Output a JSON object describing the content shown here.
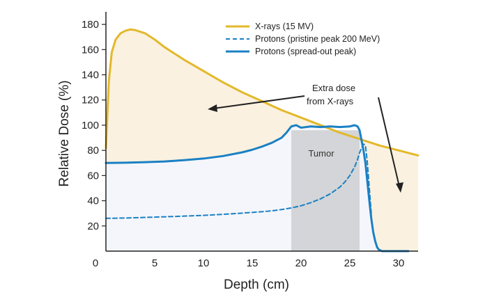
{
  "chart_data": {
    "type": "line",
    "xlabel": "Depth (cm)",
    "ylabel": "Relative Dose (%)",
    "xlim": [
      0,
      32
    ],
    "ylim": [
      0,
      190
    ],
    "xticks": [
      0,
      5,
      10,
      15,
      20,
      25,
      30
    ],
    "yticks": [
      20,
      40,
      60,
      80,
      100,
      120,
      140,
      160,
      180
    ],
    "grid": false,
    "legend_position": "top-right",
    "series": [
      {
        "name": "X-rays (15 MV)",
        "style": "solid",
        "color": "#e3b82a",
        "x": [
          0,
          0.3,
          0.6,
          1.0,
          1.5,
          2.0,
          2.5,
          3.0,
          4.0,
          5.0,
          6.0,
          8.0,
          10.0,
          12.0,
          14.0,
          16.0,
          18.0,
          20.0,
          22.0,
          24.0,
          26.0,
          28.0,
          30.0,
          32.0
        ],
        "y": [
          82,
          135,
          158,
          168,
          173,
          175,
          176,
          175.5,
          173,
          168,
          162,
          152,
          143,
          134,
          126,
          119,
          112,
          106,
          100,
          94,
          89,
          84,
          80,
          76
        ]
      },
      {
        "name": "Protons (pristine peak 200 MeV)",
        "style": "dashed",
        "color": "#1a80c4",
        "x": [
          0,
          2,
          5,
          8,
          10,
          12,
          14,
          16,
          17,
          18,
          19,
          20,
          21,
          22,
          23,
          24,
          24.5,
          25,
          25.5,
          25.8,
          26.0,
          26.2,
          26.4,
          26.6,
          26.8,
          27.0,
          27.2
        ],
        "y": [
          26,
          26.3,
          27,
          27.8,
          28.4,
          29.2,
          30.2,
          31.3,
          32,
          33,
          34.3,
          36,
          38.5,
          41.5,
          45.5,
          51,
          55,
          60,
          67,
          73,
          78,
          82,
          85,
          84,
          70,
          50,
          30
        ]
      },
      {
        "name": "Protons (spread-out peak)",
        "style": "solid",
        "color": "#1a80c4",
        "x": [
          0,
          2,
          4,
          6,
          8,
          10,
          12,
          14,
          15,
          16,
          17,
          18,
          18.5,
          19,
          19.5,
          20,
          21,
          22,
          23,
          24,
          25,
          25.5,
          25.8,
          26.0,
          26.2,
          26.4,
          26.6,
          26.8,
          27.0,
          27.2,
          27.4,
          27.6,
          27.8,
          28.0,
          28.3,
          29,
          30,
          31
        ],
        "y": [
          70,
          70.2,
          70.6,
          71.2,
          72.2,
          73.5,
          75.5,
          78.5,
          80.5,
          83,
          86,
          90,
          94,
          99,
          100,
          98,
          99,
          98.5,
          99,
          98.5,
          99,
          100,
          99,
          96,
          88,
          80,
          70,
          55,
          40,
          26,
          15,
          8,
          3,
          1,
          0,
          0,
          0,
          0
        ]
      }
    ],
    "tumor_region": {
      "x_start": 19,
      "x_end": 26,
      "label": "Tumor"
    },
    "annotation": {
      "lines": [
        "Extra dose",
        "from X-rays"
      ]
    }
  },
  "colors": {
    "xray": "#e3b82a",
    "proton": "#1a80c4",
    "xray_fill": "#fbf1e0",
    "proton_fill": "#f5f6fb",
    "tumor_fill": "#d3d5d8",
    "axis": "#222222"
  }
}
